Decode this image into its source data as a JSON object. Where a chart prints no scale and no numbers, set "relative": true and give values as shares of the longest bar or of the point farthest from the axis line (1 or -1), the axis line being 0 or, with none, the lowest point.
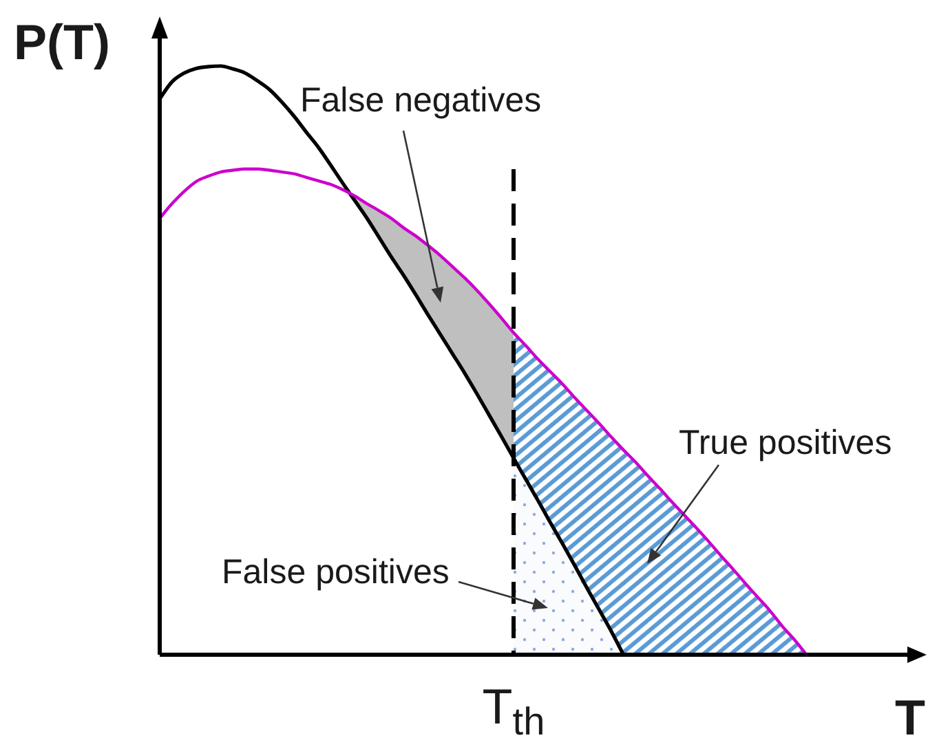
{
  "chart_data": {
    "type": "line",
    "xlabel": "T",
    "ylabel": "P(T)",
    "relative": true,
    "marker": "none",
    "categories": [
      null,
      null,
      null,
      null,
      null,
      null,
      null,
      null,
      null,
      null,
      null,
      null,
      null,
      null,
      null,
      null,
      null,
      null,
      null,
      null,
      null,
      null,
      null,
      null,
      null,
      null,
      null,
      null,
      null,
      null,
      null,
      null,
      null,
      null,
      null,
      null,
      null,
      null,
      null,
      null,
      null,
      null,
      null,
      null,
      null,
      null,
      null,
      null,
      null,
      null,
      null,
      null,
      null,
      null
    ],
    "series": [
      {
        "type": "area",
        "color": "#bfbfbf",
        "values": [
          null,
          null,
          null,
          null,
          null,
          null,
          null,
          null,
          null,
          null,
          null,
          null,
          null,
          null,
          null,
          null,
          0.779,
          0.766,
          0.754,
          0.741,
          0.725,
          0.711,
          0.695,
          0.678,
          0.659,
          0.64,
          0.619,
          0.596,
          0.572,
          0.547,
          null,
          null,
          null,
          null,
          null,
          null,
          null,
          null,
          null,
          null,
          null,
          null,
          null,
          null,
          null,
          null,
          null,
          null,
          null,
          null,
          null,
          null,
          null,
          null
        ]
      },
      {
        "type": "area",
        "color": "#5b9bd5",
        "values": [
          null,
          null,
          null,
          null,
          null,
          null,
          null,
          null,
          null,
          null,
          null,
          null,
          null,
          null,
          null,
          null,
          null,
          null,
          null,
          null,
          null,
          null,
          null,
          null,
          null,
          null,
          null,
          null,
          null,
          0.547,
          0.525,
          0.502,
          0.481,
          0.46,
          0.437,
          0.415,
          0.393,
          0.37,
          0.348,
          0.327,
          0.304,
          0.282,
          0.259,
          0.237,
          0.215,
          0.192,
          0.168,
          0.145,
          0.121,
          0.098,
          0.075,
          0.049,
          0.026,
          0
        ]
      },
      {
        "type": "area",
        "color": "#8faadc",
        "values": [
          null,
          null,
          null,
          null,
          null,
          null,
          null,
          null,
          null,
          null,
          null,
          null,
          null,
          null,
          null,
          null,
          null,
          null,
          null,
          null,
          null,
          null,
          null,
          null,
          null,
          null,
          null,
          null,
          null,
          0.334,
          0.298,
          0.262,
          0.225,
          0.189,
          0.152,
          0.114,
          0.077,
          0.04,
          0,
          null,
          null,
          null,
          null,
          null,
          null,
          null,
          null,
          null,
          null,
          null,
          null,
          null,
          null,
          null
        ]
      },
      {
        "color": "#000000",
        "values": [
          0.944,
          0.973,
          0.988,
          0.996,
          0.999,
          1,
          0.995,
          0.988,
          0.975,
          0.96,
          0.939,
          0.915,
          0.888,
          0.862,
          0.832,
          0.801,
          0.771,
          0.741,
          0.708,
          0.675,
          0.644,
          0.611,
          0.577,
          0.544,
          0.511,
          0.478,
          0.443,
          0.407,
          0.371,
          0.334,
          0.298,
          0.262,
          0.225,
          0.189,
          0.152,
          0.114,
          0.077,
          0.04,
          0,
          null,
          null,
          null,
          null,
          null,
          null,
          null,
          null,
          null,
          null,
          null,
          null,
          null,
          null,
          null
        ]
      },
      {
        "color": "#cc00cc",
        "values": [
          0.741,
          0.766,
          0.787,
          0.804,
          0.813,
          0.82,
          0.823,
          0.825,
          0.825,
          0.823,
          0.82,
          0.817,
          0.811,
          0.805,
          0.799,
          0.79,
          0.779,
          0.766,
          0.754,
          0.741,
          0.725,
          0.711,
          0.695,
          0.678,
          0.659,
          0.64,
          0.619,
          0.596,
          0.572,
          0.547,
          0.525,
          0.502,
          0.481,
          0.46,
          0.437,
          0.415,
          0.393,
          0.37,
          0.348,
          0.327,
          0.304,
          0.282,
          0.259,
          0.237,
          0.215,
          0.192,
          0.168,
          0.145,
          0.121,
          0.098,
          0.075,
          0.049,
          0.026,
          0
        ]
      }
    ],
    "annotations": [
      "False negatives",
      "True positives",
      "False positives",
      "T$_{th}$"
    ]
  }
}
